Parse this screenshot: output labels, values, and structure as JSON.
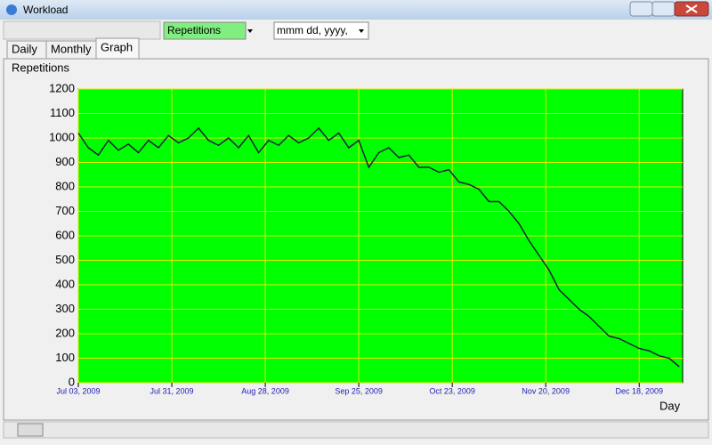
{
  "window": {
    "title": "Workload"
  },
  "toolbar": {
    "metric": "Repetitions",
    "date_format": "mmm dd, yyyy,"
  },
  "tabs": [
    "Daily",
    "Monthly",
    "Graph"
  ],
  "chart_data": {
    "type": "line",
    "ylabel": "Repetitions",
    "xlabel": "Day",
    "x": [
      "2009-07-03",
      "2009-07-06",
      "2009-07-09",
      "2009-07-12",
      "2009-07-15",
      "2009-07-18",
      "2009-07-21",
      "2009-07-24",
      "2009-07-27",
      "2009-07-30",
      "2009-08-02",
      "2009-08-05",
      "2009-08-08",
      "2009-08-11",
      "2009-08-14",
      "2009-08-17",
      "2009-08-20",
      "2009-08-23",
      "2009-08-26",
      "2009-08-29",
      "2009-09-01",
      "2009-09-04",
      "2009-09-07",
      "2009-09-10",
      "2009-09-13",
      "2009-09-16",
      "2009-09-19",
      "2009-09-22",
      "2009-09-25",
      "2009-09-28",
      "2009-10-01",
      "2009-10-04",
      "2009-10-07",
      "2009-10-10",
      "2009-10-13",
      "2009-10-16",
      "2009-10-19",
      "2009-10-22",
      "2009-10-25",
      "2009-10-28",
      "2009-10-31",
      "2009-11-03",
      "2009-11-06",
      "2009-11-09",
      "2009-11-12",
      "2009-11-15",
      "2009-11-18",
      "2009-11-21",
      "2009-11-24",
      "2009-11-27",
      "2009-11-30",
      "2009-12-03",
      "2009-12-06",
      "2009-12-09",
      "2009-12-12",
      "2009-12-15",
      "2009-12-18",
      "2009-12-21",
      "2009-12-24",
      "2009-12-27",
      "2009-12-30"
    ],
    "series": [
      {
        "name": "Repetitions",
        "color": "#202040",
        "values": [
          1020,
          960,
          930,
          990,
          950,
          975,
          940,
          990,
          960,
          1010,
          980,
          1000,
          1040,
          990,
          970,
          1000,
          960,
          1010,
          940,
          990,
          970,
          1010,
          980,
          1000,
          1040,
          990,
          1020,
          960,
          990,
          880,
          940,
          960,
          920,
          930,
          880,
          880,
          860,
          870,
          820,
          810,
          790,
          740,
          740,
          700,
          650,
          580,
          520,
          460,
          380,
          340,
          300,
          270,
          230,
          190,
          180,
          160,
          140,
          130,
          110,
          100,
          65
        ]
      }
    ],
    "xlim": [
      "2009-07-03",
      "2009-12-31"
    ],
    "xticks": [
      {
        "value": "2009-07-03",
        "label": "Jul 03, 2009"
      },
      {
        "value": "2009-07-31",
        "label": "Jul 31, 2009"
      },
      {
        "value": "2009-08-28",
        "label": "Aug 28, 2009"
      },
      {
        "value": "2009-09-25",
        "label": "Sep 25, 2009"
      },
      {
        "value": "2009-10-23",
        "label": "Oct 23, 2009"
      },
      {
        "value": "2009-11-20",
        "label": "Nov 20, 2009"
      },
      {
        "value": "2009-12-18",
        "label": "Dec 18, 2009"
      }
    ],
    "ylim": [
      0,
      1200
    ],
    "yticks": [
      0,
      100,
      200,
      300,
      400,
      500,
      600,
      700,
      800,
      900,
      1000,
      1100,
      1200
    ],
    "grid": true,
    "grid_color": "#e8e800",
    "background": "#00ff00"
  }
}
